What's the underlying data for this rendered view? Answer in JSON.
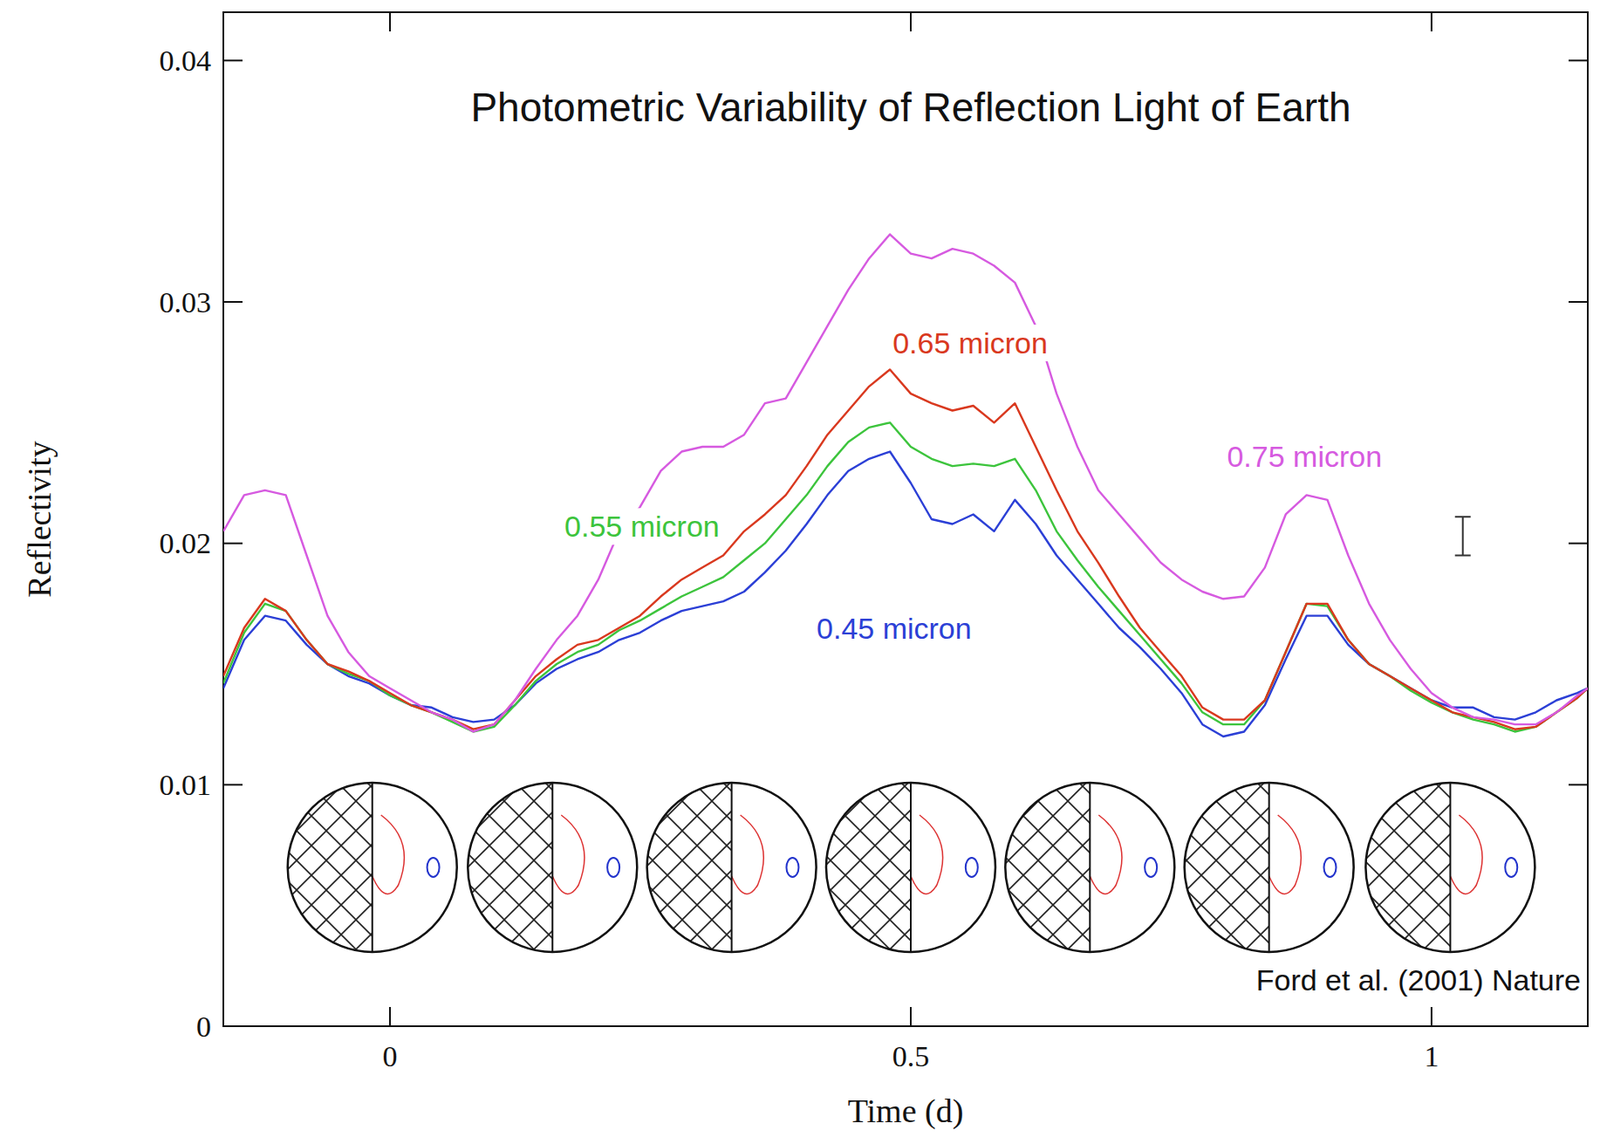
{
  "chart_data": {
    "type": "line",
    "title": "Photometric Variability of Reflection Light of Earth",
    "x_label": "Time (d)",
    "y_label": "Reflectivity",
    "annotations": [
      "Ford et al. (2001) Nature"
    ],
    "xlim": [
      -0.16,
      1.15
    ],
    "ylim": [
      0,
      0.042
    ],
    "xticks": [
      0,
      0.5,
      1
    ],
    "yticks": [
      0,
      0.01,
      0.02,
      0.03,
      0.04
    ],
    "x": [
      -0.16,
      -0.14,
      -0.12,
      -0.1,
      -0.08,
      -0.06,
      -0.04,
      -0.02,
      0,
      0.02,
      0.04,
      0.06,
      0.08,
      0.1,
      0.12,
      0.14,
      0.16,
      0.18,
      0.2,
      0.22,
      0.24,
      0.26,
      0.28,
      0.3,
      0.32,
      0.34,
      0.36,
      0.38,
      0.4,
      0.42,
      0.44,
      0.46,
      0.48,
      0.5,
      0.52,
      0.54,
      0.56,
      0.58,
      0.6,
      0.62,
      0.64,
      0.66,
      0.68,
      0.7,
      0.72,
      0.74,
      0.76,
      0.78,
      0.8,
      0.82,
      0.84,
      0.86,
      0.88,
      0.9,
      0.92,
      0.94,
      0.96,
      0.98,
      1.0,
      1.02,
      1.04,
      1.06,
      1.08,
      1.1,
      1.12,
      1.14,
      1.15
    ],
    "series": [
      {
        "name": "0.45 micron",
        "color": "#2b3fd6",
        "values": [
          0.014,
          0.016,
          0.017,
          0.0168,
          0.0158,
          0.015,
          0.0145,
          0.0142,
          0.0137,
          0.0133,
          0.0132,
          0.0128,
          0.0126,
          0.0127,
          0.0133,
          0.0142,
          0.0148,
          0.0152,
          0.0155,
          0.016,
          0.0163,
          0.0168,
          0.0172,
          0.0174,
          0.0176,
          0.018,
          0.0188,
          0.0197,
          0.0208,
          0.022,
          0.023,
          0.0235,
          0.0238,
          0.0225,
          0.021,
          0.0208,
          0.0212,
          0.0205,
          0.0218,
          0.0208,
          0.0195,
          0.0185,
          0.0175,
          0.0165,
          0.0157,
          0.0148,
          0.0138,
          0.0125,
          0.012,
          0.0122,
          0.0133,
          0.0152,
          0.017,
          0.017,
          0.0158,
          0.015,
          0.0145,
          0.014,
          0.0135,
          0.0132,
          0.0132,
          0.0128,
          0.0127,
          0.013,
          0.0135,
          0.0138,
          0.014
        ]
      },
      {
        "name": "0.55 micron",
        "color": "#3cc43c",
        "values": [
          0.0142,
          0.0163,
          0.0175,
          0.0172,
          0.016,
          0.015,
          0.0146,
          0.0143,
          0.0137,
          0.0133,
          0.013,
          0.0126,
          0.0122,
          0.0124,
          0.0133,
          0.0143,
          0.015,
          0.0155,
          0.0158,
          0.0164,
          0.0168,
          0.0173,
          0.0178,
          0.0182,
          0.0186,
          0.0193,
          0.02,
          0.021,
          0.022,
          0.0232,
          0.0242,
          0.0248,
          0.025,
          0.024,
          0.0235,
          0.0232,
          0.0233,
          0.0232,
          0.0235,
          0.0222,
          0.0205,
          0.0193,
          0.0182,
          0.0172,
          0.0162,
          0.0152,
          0.0142,
          0.013,
          0.0125,
          0.0125,
          0.0135,
          0.0155,
          0.0175,
          0.0174,
          0.016,
          0.015,
          0.0145,
          0.0139,
          0.0134,
          0.013,
          0.0127,
          0.0125,
          0.0122,
          0.0124,
          0.013,
          0.0136,
          0.014
        ]
      },
      {
        "name": "0.65 micron",
        "color": "#d9381e",
        "values": [
          0.0145,
          0.0165,
          0.0177,
          0.0172,
          0.016,
          0.015,
          0.0147,
          0.0143,
          0.0138,
          0.0133,
          0.013,
          0.0127,
          0.0123,
          0.0125,
          0.0135,
          0.0145,
          0.0152,
          0.0158,
          0.016,
          0.0165,
          0.017,
          0.0178,
          0.0185,
          0.019,
          0.0195,
          0.0205,
          0.0212,
          0.022,
          0.0232,
          0.0245,
          0.0255,
          0.0265,
          0.0272,
          0.0262,
          0.0258,
          0.0255,
          0.0257,
          0.025,
          0.0258,
          0.024,
          0.0222,
          0.0205,
          0.0192,
          0.0178,
          0.0165,
          0.0155,
          0.0145,
          0.0132,
          0.0127,
          0.0127,
          0.0135,
          0.0155,
          0.0175,
          0.0175,
          0.016,
          0.015,
          0.0145,
          0.014,
          0.0135,
          0.013,
          0.0128,
          0.0126,
          0.0123,
          0.0124,
          0.013,
          0.0136,
          0.014
        ]
      },
      {
        "name": "0.75 micron",
        "color": "#d65ae0",
        "values": [
          0.0205,
          0.022,
          0.0222,
          0.022,
          0.0195,
          0.017,
          0.0155,
          0.0145,
          0.014,
          0.0135,
          0.013,
          0.0127,
          0.0122,
          0.0125,
          0.0135,
          0.0148,
          0.016,
          0.017,
          0.0185,
          0.0205,
          0.0215,
          0.023,
          0.0238,
          0.024,
          0.024,
          0.0245,
          0.0258,
          0.026,
          0.0275,
          0.029,
          0.0305,
          0.0318,
          0.0328,
          0.032,
          0.0318,
          0.0322,
          0.032,
          0.0315,
          0.0308,
          0.029,
          0.0262,
          0.024,
          0.0222,
          0.0212,
          0.0202,
          0.0192,
          0.0185,
          0.018,
          0.0177,
          0.0178,
          0.019,
          0.0212,
          0.022,
          0.0218,
          0.0195,
          0.0175,
          0.016,
          0.0148,
          0.0138,
          0.0132,
          0.0128,
          0.0127,
          0.0125,
          0.0125,
          0.013,
          0.0137,
          0.014
        ]
      }
    ],
    "error_bar": {
      "x": 1.03,
      "y": 0.0203,
      "error": 0.0008
    }
  }
}
